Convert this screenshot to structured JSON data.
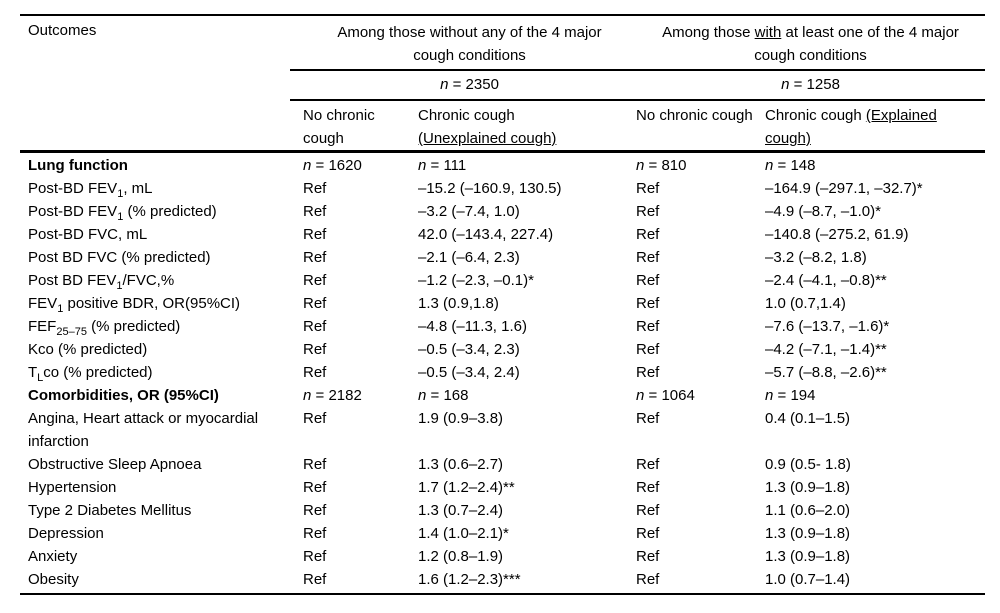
{
  "table": {
    "n_symbol": "n",
    "header": {
      "outcomes_label": "Outcomes",
      "group1": {
        "title": "Among those without any of the 4 major cough conditions",
        "n_value": "= 2350"
      },
      "group2": {
        "title_pre": "Among those ",
        "title_underlined": "with",
        "title_post": " at least one of the 4 major cough conditions",
        "n_value": "= 1258"
      },
      "columns": {
        "col2": "No chronic cough",
        "col3_pre": "Chronic cough ",
        "col3_underlined": "(Unexplained cough)",
        "col4": "No chronic cough",
        "col5_pre": "Chronic cough ",
        "col5_underlined": "(Explained cough)"
      }
    },
    "rows": [
      {
        "type": "section",
        "label_pre": "Lung function",
        "counts": [
          "= 1620",
          "= 111",
          "= 810",
          "= 148"
        ]
      },
      {
        "type": "data",
        "label_pre": "Post-BD FEV",
        "label_sub": "1",
        "label_post": ", mL",
        "cells": [
          "Ref",
          "–15.2 (–160.9, 130.5)",
          "Ref",
          "–164.9 (–297.1, –32.7)*"
        ]
      },
      {
        "type": "data",
        "label_pre": "Post-BD FEV",
        "label_sub": "1",
        "label_post": " (% predicted)",
        "cells": [
          "Ref",
          "–3.2 (–7.4, 1.0)",
          "Ref",
          "–4.9 (–8.7, –1.0)*"
        ]
      },
      {
        "type": "data",
        "label_pre": "Post-BD FVC, mL",
        "cells": [
          "Ref",
          "42.0 (–143.4, 227.4)",
          "Ref",
          "–140.8 (–275.2, 61.9)"
        ]
      },
      {
        "type": "data",
        "label_pre": "Post BD FVC (% predicted)",
        "cells": [
          "Ref",
          "–2.1 (–6.4, 2.3)",
          "Ref",
          "–3.2 (–8.2, 1.8)"
        ]
      },
      {
        "type": "data",
        "label_pre": "Post BD FEV",
        "label_sub": "1",
        "label_post": "/FVC,%",
        "cells": [
          "Ref",
          "–1.2 (–2.3, –0.1)*",
          "Ref",
          "–2.4 (–4.1, –0.8)**"
        ]
      },
      {
        "type": "data",
        "label_pre": "FEV",
        "label_sub": "1",
        "label_post": " positive BDR, OR(95%CI)",
        "cells": [
          "Ref",
          "1.3 (0.9,1.8)",
          "Ref",
          "1.0 (0.7,1.4)"
        ]
      },
      {
        "type": "data",
        "label_pre": "FEF",
        "label_sub": "25–75",
        "label_post": " (% predicted)",
        "cells": [
          "Ref",
          "–4.8 (–11.3, 1.6)",
          "Ref",
          "–7.6 (–13.7, –1.6)*"
        ]
      },
      {
        "type": "data",
        "label_pre": "Kco (% predicted)",
        "cells": [
          "Ref",
          "–0.5 (–3.4, 2.3)",
          "Ref",
          "–4.2 (–7.1, –1.4)**"
        ]
      },
      {
        "type": "data",
        "label_pre": "T",
        "label_sub": "L",
        "label_post": "co (% predicted)",
        "cells": [
          "Ref",
          "–0.5 (–3.4, 2.4)",
          "Ref",
          "–5.7 (–8.8, –2.6)**"
        ]
      },
      {
        "type": "section",
        "label_pre": "Comorbidities, OR (95%CI)",
        "counts": [
          "= 2182",
          "= 168",
          "= 1064",
          "= 194"
        ]
      },
      {
        "type": "data",
        "label_pre": "Angina, Heart attack or myocardial infarction",
        "cells": [
          "Ref",
          "1.9 (0.9–3.8)",
          "Ref",
          "0.4 (0.1–1.5)"
        ]
      },
      {
        "type": "data",
        "label_pre": "Obstructive Sleep Apnoea",
        "cells": [
          "Ref",
          "1.3 (0.6–2.7)",
          "Ref",
          "0.9 (0.5- 1.8)"
        ]
      },
      {
        "type": "data",
        "label_pre": "Hypertension",
        "cells": [
          "Ref",
          "1.7 (1.2–2.4)**",
          "Ref",
          "1.3 (0.9–1.8)"
        ]
      },
      {
        "type": "data",
        "label_pre": "Type 2 Diabetes Mellitus",
        "cells": [
          "Ref",
          "1.3 (0.7–2.4)",
          "Ref",
          "1.1 (0.6–2.0)"
        ]
      },
      {
        "type": "data",
        "label_pre": "Depression",
        "cells": [
          "Ref",
          "1.4 (1.0–2.1)*",
          "Ref",
          "1.3 (0.9–1.8)"
        ]
      },
      {
        "type": "data",
        "label_pre": "Anxiety",
        "cells": [
          "Ref",
          "1.2 (0.8–1.9)",
          "Ref",
          "1.3 (0.9–1.8)"
        ]
      },
      {
        "type": "data",
        "label_pre": "Obesity",
        "cells": [
          "Ref",
          "1.6 (1.2–2.3)***",
          "Ref",
          "1.0 (0.7–1.4)"
        ]
      }
    ]
  }
}
